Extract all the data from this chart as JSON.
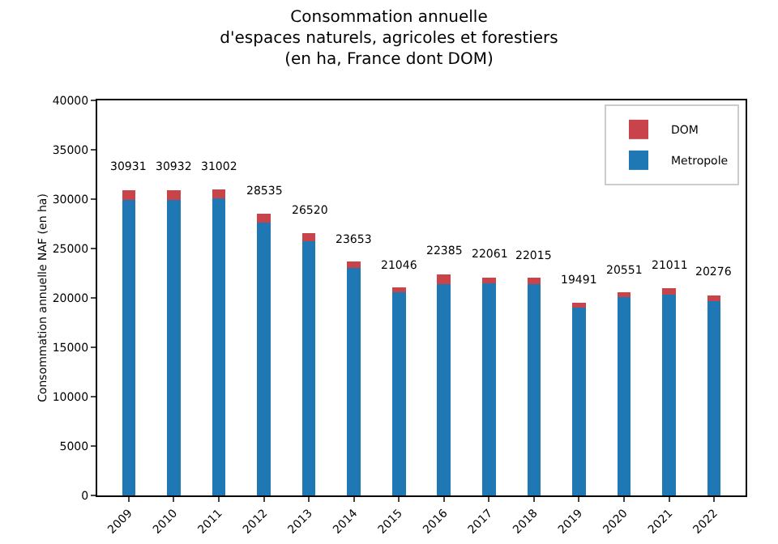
{
  "chart_data": {
    "type": "bar",
    "title": "Consommation annuelle\nd'espaces naturels, agricoles et forestiers\n(en ha, France dont DOM)",
    "ylabel": "Consommation annuelle NAF (en ha)",
    "categories": [
      "2009",
      "2010",
      "2011",
      "2012",
      "2013",
      "2014",
      "2015",
      "2016",
      "2017",
      "2018",
      "2019",
      "2020",
      "2021",
      "2022"
    ],
    "stacked": true,
    "series": [
      {
        "name": "Metropole",
        "color": "#1f77b4",
        "values": [
          29931,
          29932,
          30102,
          27635,
          25720,
          23053,
          20546,
          21385,
          21461,
          21415,
          18991,
          20051,
          20311,
          19676
        ]
      },
      {
        "name": "DOM",
        "color": "#c9444a",
        "values": [
          1000,
          1000,
          900,
          900,
          800,
          600,
          500,
          1000,
          600,
          600,
          500,
          500,
          700,
          600
        ]
      }
    ],
    "totals": [
      "30931",
      "30932",
      "31002",
      "28535",
      "26520",
      "23653",
      "21046",
      "22385",
      "22061",
      "22015",
      "19491",
      "20551",
      "21011",
      "20276"
    ],
    "ylim": [
      0,
      40000
    ],
    "yticks": [
      0,
      5000,
      10000,
      15000,
      20000,
      25000,
      30000,
      35000,
      40000
    ],
    "legend": "top right"
  }
}
